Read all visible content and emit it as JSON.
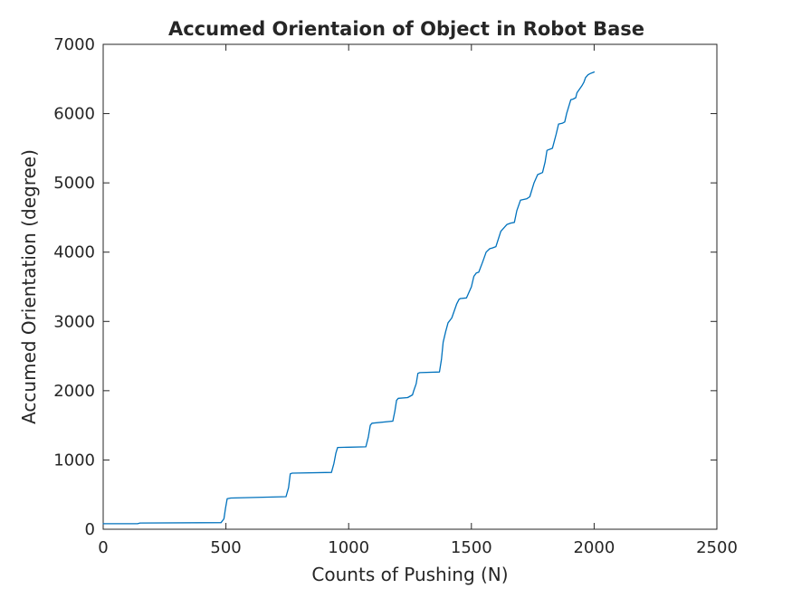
{
  "chart_data": {
    "type": "line",
    "title": "Accumed Orientaion of Object in Robot Base",
    "xlabel": "Counts of Pushing (N)",
    "ylabel": "Accumed Orientation (degree)",
    "xlim": [
      0,
      2500
    ],
    "ylim": [
      0,
      7000
    ],
    "xticks": [
      "0",
      "500",
      "1000",
      "1500",
      "2000",
      "2500"
    ],
    "yticks": [
      "0",
      "1000",
      "2000",
      "3000",
      "4000",
      "5000",
      "6000",
      "7000"
    ],
    "grid": false,
    "line_color": "#0072bd",
    "series": [
      {
        "x": [
          0,
          140,
          150,
          480,
          492,
          498,
          505,
          520,
          745,
          755,
          762,
          770,
          930,
          940,
          948,
          955,
          1070,
          1080,
          1088,
          1095,
          1180,
          1188,
          1195,
          1202,
          1240,
          1250,
          1260,
          1265,
          1275,
          1282,
          1290,
          1370,
          1378,
          1385,
          1395,
          1405,
          1420,
          1440,
          1450,
          1455,
          1480,
          1500,
          1510,
          1520,
          1530,
          1545,
          1560,
          1575,
          1585,
          1600,
          1620,
          1645,
          1660,
          1675,
          1685,
          1700,
          1725,
          1738,
          1755,
          1770,
          1790,
          1800,
          1808,
          1830,
          1845,
          1855,
          1870,
          1880,
          1888,
          1905,
          1915,
          1925,
          1930,
          1950,
          1958,
          1965,
          1975,
          1985,
          1993,
          2000
        ],
        "y": [
          80,
          80,
          90,
          95,
          150,
          300,
          440,
          450,
          470,
          600,
          800,
          810,
          820,
          950,
          1100,
          1180,
          1190,
          1330,
          1500,
          1530,
          1560,
          1700,
          1860,
          1890,
          1900,
          1920,
          1940,
          2000,
          2100,
          2250,
          2260,
          2270,
          2450,
          2700,
          2850,
          2980,
          3050,
          3250,
          3320,
          3330,
          3340,
          3500,
          3650,
          3700,
          3710,
          3850,
          4000,
          4050,
          4060,
          4080,
          4300,
          4400,
          4420,
          4430,
          4600,
          4750,
          4770,
          4800,
          5000,
          5120,
          5150,
          5300,
          5470,
          5500,
          5700,
          5850,
          5860,
          5880,
          6000,
          6200,
          6210,
          6230,
          6300,
          6400,
          6450,
          6520,
          6560,
          6580,
          6590,
          6600
        ]
      }
    ]
  }
}
